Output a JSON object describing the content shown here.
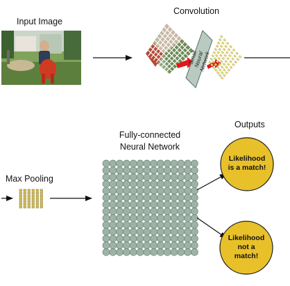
{
  "labels": {
    "input_image": "Input Image",
    "convolution": "Convolution",
    "small_nn_line1": "Small",
    "small_nn_line2": "Neural",
    "small_nn_line3": "Network",
    "fc_line1": "Fully-connected",
    "fc_line2": "Neural Network",
    "max_pooling": "Max Pooling",
    "outputs": "Outputs"
  },
  "outputs": [
    {
      "line1": "Likelihood",
      "line2": "is a match!",
      "line3": ""
    },
    {
      "line1": "Likelihood",
      "line2": "not a",
      "line3": "match!"
    }
  ],
  "colors": {
    "circle_fill": "#e8c12a",
    "circle_stroke": "#1a1a1a",
    "node_fill": "#9db3a6",
    "node_stroke": "#6f857a",
    "tile_fill": "#e6dc7a",
    "red_arrow": "#e0191a",
    "nn_box": "#b9cbc1"
  }
}
